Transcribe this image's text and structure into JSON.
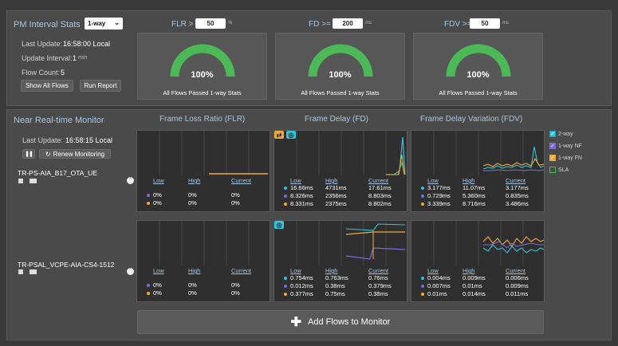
{
  "colors": {
    "green": "#4cb858",
    "cyan": "#2fc4d8",
    "blue": "#7a6bd8",
    "orange": "#f3a83a",
    "header": "#a9c6e0"
  },
  "pm": {
    "title": "PM Interval Stats",
    "mode": "1-way",
    "last_update_label": "Last Update:",
    "last_update_value": "16:58:00 Local",
    "interval_label": "Update Interval:",
    "interval_value": "1",
    "interval_unit": "min",
    "flow_count_label": "Flow Count:",
    "flow_count_value": "5",
    "show_all_label": "Show All Flows",
    "run_report_label": "Run Report"
  },
  "thresholds": [
    {
      "label": "FLR >",
      "value": "50",
      "unit": "%"
    },
    {
      "label": "FD >=",
      "value": "200",
      "unit": "ms"
    },
    {
      "label": "FDV >=",
      "value": "50",
      "unit": "ms"
    }
  ],
  "gauges": [
    {
      "value": "100%",
      "caption": "All Flows Passed 1-way Stats",
      "fraction": 1.0
    },
    {
      "value": "100%",
      "caption": "All Flows Passed 1-way Stats",
      "fraction": 1.0
    },
    {
      "value": "100%",
      "caption": "All Flows Passed 1-way Stats",
      "fraction": 1.0
    }
  ],
  "monitor": {
    "title": "Near Real-time Monitor",
    "last_update_label": "Last Update:",
    "last_update_value": "16:58:15 Local",
    "pause_icon": "pause-icon",
    "renew_label": "Renew Monitoring",
    "col_headers": [
      "Frame Loss Ratio (FLR)",
      "Frame Delay (FD)",
      "Frame Delay Variation (FDV)"
    ],
    "add_flows_label": "Add Flows to Monitor"
  },
  "legend": [
    {
      "label": "2-way",
      "checked": true,
      "color": "#2fc4d8"
    },
    {
      "label": "1-way NF",
      "checked": true,
      "color": "#7a6bd8"
    },
    {
      "label": "1-way FN",
      "checked": true,
      "color": "#f3a83a"
    },
    {
      "label": "SLA",
      "checked": false,
      "color": "#4cb858"
    }
  ],
  "table_headers": {
    "low": "Low",
    "high": "High",
    "current": "Current"
  },
  "flows": [
    {
      "name": "TR-PS-AIA_B17_OTA_UE",
      "flr": {
        "rows": [
          [
            "0%",
            "0%",
            "0%"
          ],
          [
            "0%",
            "0%",
            "0%"
          ]
        ]
      },
      "fd": {
        "rows": [
          [
            "16.66ms",
            "4731ms",
            "17.61ms"
          ],
          [
            "8.326ms",
            "2356ms",
            "8.803ms"
          ],
          [
            "8.331ms",
            "2375ms",
            "8.802ms"
          ]
        ]
      },
      "fdv": {
        "rows": [
          [
            "3.177ms",
            "11.07ms",
            "3.177ms"
          ],
          [
            "0.729ms",
            "5.360ms",
            "0.835ms"
          ],
          [
            "3.339ms",
            "8.716ms",
            "3.486ms"
          ]
        ]
      }
    },
    {
      "name": "TR-PSAL_VCPE-AIA-CS4-1512",
      "flr": {
        "rows": [
          [
            "0%",
            "0%",
            "0%"
          ],
          [
            "0%",
            "0%",
            "0%"
          ]
        ]
      },
      "fd": {
        "rows": [
          [
            "0.754ms",
            "0.763ms",
            "0.76ms"
          ],
          [
            "0.012ms",
            "0.38ms",
            "0.379ms"
          ],
          [
            "0.377ms",
            "0.75ms",
            "0.38ms"
          ]
        ]
      },
      "fdv": {
        "rows": [
          [
            "0.004ms",
            "0.009ms",
            "0.006ms"
          ],
          [
            "0.007ms",
            "0.01ms",
            "0.009ms"
          ],
          [
            "0.01ms",
            "0.014ms",
            "0.011ms"
          ]
        ]
      }
    }
  ]
}
